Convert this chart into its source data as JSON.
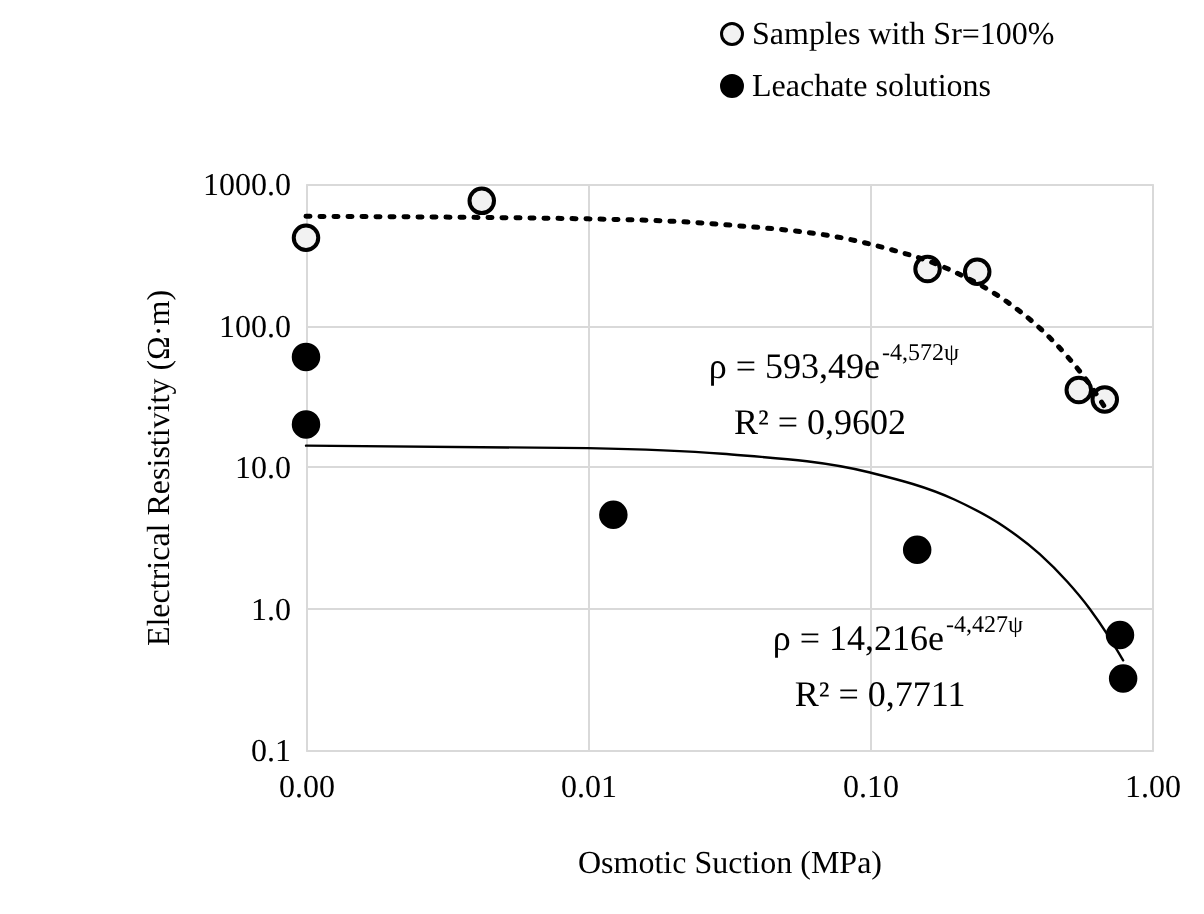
{
  "chart_data": {
    "type": "scatter",
    "xlabel": "Osmotic Suction (MPa)",
    "ylabel": "Electrical Resistivity (Ω·m)",
    "log": "xy",
    "grid": true,
    "legend": "top right",
    "marker": "circle",
    "xlim": [
      0.001,
      1
    ],
    "xticks": [
      {
        "value": 0.001,
        "label": "0.00"
      },
      {
        "value": 0.01,
        "label": "0.01"
      },
      {
        "value": 0.1,
        "label": "0.10"
      },
      {
        "value": 1,
        "label": "1.00"
      }
    ],
    "ylim": [
      0.1,
      1000
    ],
    "yticks": [
      {
        "value": 0.1,
        "label": "0.1"
      },
      {
        "value": 1,
        "label": "1.0"
      },
      {
        "value": 10,
        "label": "10.0"
      },
      {
        "value": 100,
        "label": "100.0"
      },
      {
        "value": 1000,
        "label": "1000.0"
      }
    ],
    "series": [
      {
        "name": "Samples with Sr=100%",
        "color": "#f2f2f2",
        "x": [
          0.001,
          0.0042,
          0.16,
          0.24,
          0.55,
          0.68
        ],
        "values": [
          417,
          760,
          251,
          240,
          35,
          30
        ]
      },
      {
        "name": "Leachate solutions",
        "color": "#000000",
        "x": [
          0.001,
          0.001,
          0.0123,
          0.147,
          0.77,
          0.79
        ],
        "values": [
          60,
          20,
          4.6,
          2.6,
          0.65,
          0.32
        ]
      },
      {
        "type": "line",
        "line_style": "dotted",
        "marker": "none",
        "color": "#000000",
        "x": [
          0.001,
          0.01,
          0.03,
          0.1,
          0.2,
          0.3,
          0.4,
          0.5,
          0.6,
          0.68
        ],
        "values": [
          590.8,
          567.0,
          517.5,
          376.2,
          238.5,
          151.2,
          95.8,
          60.7,
          38.5,
          26.5
        ]
      },
      {
        "type": "line",
        "line_style": "solid",
        "marker": "none",
        "color": "#000000",
        "x": [
          0.001,
          0.01,
          0.03,
          0.1,
          0.2,
          0.3,
          0.4,
          0.5,
          0.6,
          0.7,
          0.79
        ],
        "values": [
          14.15,
          13.6,
          12.4,
          9.14,
          5.87,
          3.77,
          2.42,
          1.55,
          1.0,
          0.64,
          0.43
        ]
      }
    ],
    "annotations": [
      "ρ = 593,49e$^{-4,572ψ}$",
      "R² = 0,9602",
      "ρ = 14,216e$^{-4,427ψ}$",
      "R² = 0,7711"
    ]
  }
}
